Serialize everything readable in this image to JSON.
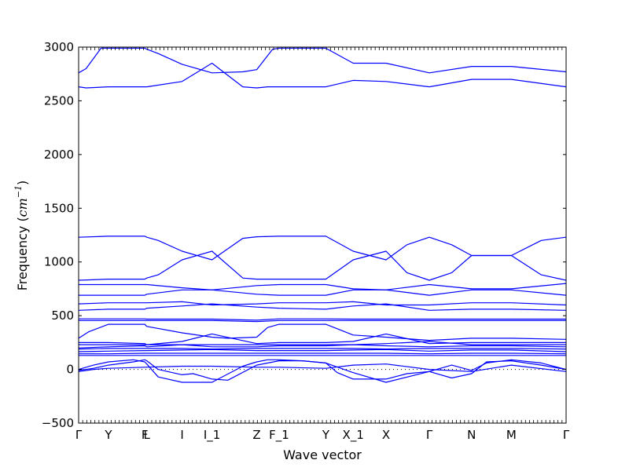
{
  "chart_data": {
    "type": "line",
    "title": "",
    "xlabel": "Wave vector",
    "ylabel_parts": {
      "prefix": "Frequency (",
      "var": "cm",
      "sup": "−1",
      "suffix": ")"
    },
    "ylim": [
      -500,
      3000
    ],
    "yticks": [
      -500,
      0,
      500,
      1000,
      1500,
      2000,
      2500,
      3000
    ],
    "grid": false,
    "legend": "none",
    "line_color": "#0000ff",
    "high_symmetry_points": [
      {
        "label": "Γ",
        "x": 0.0
      },
      {
        "label": "Y",
        "x": 0.6
      },
      {
        "label": "F",
        "x": 1.33
      },
      {
        "label": "L",
        "x": 1.37
      },
      {
        "label": "I",
        "x": 2.08
      },
      {
        "label": "I_1",
        "x": 2.68
      },
      {
        "label": "Z",
        "x": 3.58
      },
      {
        "label": "F_1",
        "x": 4.03
      },
      {
        "label": "Y",
        "x": 4.97
      },
      {
        "label": "X_1",
        "x": 5.52
      },
      {
        "label": "X",
        "x": 6.18
      },
      {
        "label": "Γ",
        "x": 7.05
      },
      {
        "label": "N",
        "x": 7.9
      },
      {
        "label": "M",
        "x": 8.7
      },
      {
        "label": "Γ",
        "x": 9.8
      }
    ],
    "series": [
      {
        "x": [
          0,
          0.15,
          0.45,
          0.6,
          1.33,
          1.37,
          1.6,
          2.08,
          2.68,
          3.3,
          3.58,
          3.9,
          4.03,
          4.97,
          5.52,
          6.18,
          7.05,
          7.9,
          8.7,
          9.8
        ],
        "y": [
          2760,
          2800,
          2990,
          2990,
          2990,
          2980,
          2940,
          2840,
          2760,
          2770,
          2790,
          2980,
          2990,
          2990,
          2850,
          2850,
          2760,
          2820,
          2820,
          2770
        ]
      },
      {
        "x": [
          0,
          0.15,
          0.6,
          1.33,
          1.37,
          2.08,
          2.68,
          3.3,
          3.58,
          3.8,
          4.03,
          4.97,
          5.52,
          6.18,
          7.05,
          7.9,
          8.7,
          9.8
        ],
        "y": [
          2630,
          2620,
          2630,
          2630,
          2630,
          2680,
          2850,
          2630,
          2620,
          2630,
          2630,
          2630,
          2690,
          2680,
          2630,
          2700,
          2700,
          2630
        ]
      },
      {
        "x": [
          0,
          0.6,
          1.33,
          1.37,
          1.6,
          2.08,
          2.68,
          3.3,
          3.58,
          4.03,
          4.97,
          5.52,
          6.18,
          6.6,
          7.05,
          7.5,
          7.9,
          8.7,
          9.3,
          9.8
        ],
        "y": [
          1230,
          1240,
          1240,
          1230,
          1200,
          1100,
          1020,
          1220,
          1235,
          1240,
          1240,
          1100,
          1020,
          1160,
          1230,
          1160,
          1060,
          1060,
          1200,
          1230
        ]
      },
      {
        "x": [
          0,
          0.6,
          1.33,
          1.37,
          1.6,
          2.08,
          2.68,
          3.3,
          3.58,
          4.03,
          4.97,
          5.52,
          6.18,
          6.6,
          7.05,
          7.5,
          7.9,
          8.7,
          9.3,
          9.8
        ],
        "y": [
          830,
          840,
          840,
          850,
          880,
          1020,
          1100,
          850,
          840,
          840,
          840,
          1020,
          1100,
          900,
          830,
          900,
          1060,
          1060,
          880,
          830
        ]
      },
      {
        "x": [
          0,
          0.6,
          1.33,
          1.37,
          2.08,
          2.68,
          3.58,
          4.03,
          4.97,
          5.52,
          6.18,
          7.05,
          7.9,
          8.7,
          9.8
        ],
        "y": [
          790,
          790,
          790,
          790,
          760,
          740,
          780,
          790,
          790,
          750,
          740,
          790,
          750,
          750,
          800
        ]
      },
      {
        "x": [
          0,
          0.6,
          1.33,
          1.37,
          2.08,
          2.68,
          3.58,
          4.03,
          4.97,
          5.52,
          6.18,
          7.05,
          7.9,
          8.7,
          9.8
        ],
        "y": [
          690,
          690,
          690,
          700,
          740,
          740,
          700,
          690,
          690,
          740,
          740,
          690,
          740,
          740,
          690
        ]
      },
      {
        "x": [
          0,
          0.6,
          1.33,
          1.37,
          2.08,
          2.68,
          3.58,
          4.03,
          4.97,
          5.52,
          6.18,
          7.05,
          7.9,
          8.7,
          9.8
        ],
        "y": [
          610,
          620,
          620,
          620,
          630,
          600,
          610,
          620,
          620,
          630,
          600,
          600,
          620,
          620,
          600
        ]
      },
      {
        "x": [
          0,
          0.6,
          1.33,
          1.37,
          2.08,
          2.68,
          3.58,
          4.03,
          4.97,
          5.52,
          6.18,
          7.05,
          7.9,
          8.7,
          9.8
        ],
        "y": [
          550,
          560,
          560,
          570,
          590,
          610,
          580,
          570,
          560,
          590,
          610,
          550,
          560,
          560,
          550
        ]
      },
      {
        "x": [
          0,
          0.6,
          1.33,
          1.37,
          2.08,
          2.68,
          3.58,
          4.03,
          4.97,
          5.52,
          6.18,
          7.05,
          7.9,
          8.7,
          9.8
        ],
        "y": [
          470,
          470,
          470,
          468,
          468,
          468,
          458,
          470,
          470,
          468,
          468,
          468,
          468,
          468,
          468
        ]
      },
      {
        "x": [
          0,
          0.6,
          1.33,
          1.37,
          2.08,
          2.68,
          3.58,
          4.03,
          4.97,
          5.52,
          6.18,
          7.05,
          7.9,
          8.7,
          9.8
        ],
        "y": [
          455,
          455,
          455,
          455,
          455,
          455,
          445,
          455,
          455,
          455,
          455,
          455,
          455,
          455,
          455
        ]
      },
      {
        "x": [
          0,
          0.2,
          0.6,
          1.33,
          1.37,
          2.08,
          2.68,
          3.0,
          3.58,
          3.8,
          4.03,
          4.97,
          5.52,
          6.18,
          7.05,
          7.9,
          8.7,
          9.8
        ],
        "y": [
          290,
          350,
          420,
          420,
          400,
          340,
          300,
          290,
          300,
          390,
          420,
          420,
          320,
          300,
          270,
          290,
          290,
          280
        ]
      },
      {
        "x": [
          0,
          0.6,
          1.33,
          1.37,
          2.08,
          2.68,
          3.58,
          4.03,
          4.97,
          5.52,
          6.18,
          7.05,
          7.9,
          8.7,
          9.8
        ],
        "y": [
          250,
          250,
          240,
          230,
          260,
          330,
          240,
          250,
          250,
          260,
          330,
          240,
          250,
          250,
          250
        ]
      },
      {
        "x": [
          0,
          0.6,
          1.33,
          1.37,
          2.08,
          2.68,
          3.58,
          4.03,
          4.97,
          5.52,
          6.18,
          7.05,
          7.9,
          8.7,
          9.8
        ],
        "y": [
          230,
          230,
          230,
          230,
          230,
          230,
          230,
          230,
          230,
          230,
          240,
          260,
          230,
          230,
          230
        ]
      },
      {
        "x": [
          0,
          0.6,
          1.33,
          1.37,
          2.08,
          2.68,
          3.58,
          4.03,
          4.97,
          5.52,
          6.18,
          7.05,
          7.9,
          8.7,
          9.8
        ],
        "y": [
          200,
          210,
          220,
          210,
          230,
          210,
          210,
          220,
          220,
          230,
          220,
          210,
          220,
          220,
          210
        ]
      },
      {
        "x": [
          0,
          0.6,
          1.33,
          1.37,
          2.08,
          2.68,
          3.58,
          4.03,
          4.97,
          5.52,
          6.18,
          7.05,
          7.9,
          8.7,
          9.8
        ],
        "y": [
          190,
          195,
          195,
          195,
          195,
          190,
          195,
          195,
          195,
          195,
          190,
          195,
          195,
          195,
          190
        ]
      },
      {
        "x": [
          0,
          0.6,
          1.33,
          1.37,
          2.08,
          2.68,
          3.58,
          4.03,
          4.97,
          5.52,
          6.18,
          7.05,
          7.9,
          8.7,
          9.8
        ],
        "y": [
          165,
          170,
          175,
          175,
          180,
          185,
          175,
          175,
          175,
          180,
          185,
          170,
          180,
          180,
          165
        ]
      },
      {
        "x": [
          0,
          0.6,
          1.33,
          1.37,
          2.08,
          2.68,
          3.58,
          4.03,
          4.97,
          5.52,
          6.18,
          7.05,
          7.9,
          8.7,
          9.8
        ],
        "y": [
          145,
          145,
          150,
          150,
          150,
          150,
          150,
          150,
          150,
          150,
          150,
          145,
          150,
          150,
          145
        ]
      },
      {
        "x": [
          0,
          0.6,
          1.33,
          1.37,
          2.08,
          2.68,
          3.58,
          4.03,
          4.97,
          5.52,
          6.18,
          7.05,
          7.9,
          8.7,
          9.8
        ],
        "y": [
          130,
          130,
          130,
          130,
          130,
          130,
          130,
          130,
          130,
          130,
          130,
          130,
          130,
          130,
          130
        ]
      },
      {
        "x": [
          0,
          0.3,
          0.6,
          1.1,
          1.33,
          1.37,
          1.6,
          2.08,
          2.68,
          3.3,
          3.58,
          3.8,
          4.03,
          4.5,
          4.97,
          5.2,
          5.52,
          6.18,
          6.6,
          7.05,
          7.5,
          7.9,
          8.2,
          8.7,
          9.3,
          9.8
        ],
        "y": [
          0,
          40,
          70,
          90,
          70,
          50,
          -70,
          -120,
          -120,
          30,
          70,
          90,
          90,
          80,
          60,
          -30,
          -90,
          -90,
          -40,
          -20,
          -80,
          -40,
          70,
          80,
          40,
          0
        ]
      },
      {
        "x": [
          0,
          0.3,
          0.6,
          1.1,
          1.33,
          1.37,
          1.6,
          2.08,
          2.3,
          2.68,
          3.0,
          3.58,
          4.03,
          4.5,
          4.97,
          5.52,
          6.18,
          7.05,
          7.5,
          7.9,
          8.2,
          8.7,
          9.3,
          9.8
        ],
        "y": [
          -10,
          10,
          40,
          70,
          90,
          80,
          0,
          -50,
          -40,
          -90,
          -100,
          40,
          80,
          80,
          60,
          -30,
          -120,
          -20,
          40,
          -10,
          60,
          90,
          60,
          0
        ]
      },
      {
        "x": [
          0,
          0.3,
          0.6,
          1.33,
          2.08,
          2.68,
          3.58,
          4.03,
          4.97,
          5.52,
          6.18,
          7.05,
          7.9,
          8.7,
          9.8
        ],
        "y": [
          -20,
          0,
          10,
          20,
          30,
          30,
          20,
          20,
          10,
          40,
          50,
          0,
          -20,
          40,
          -20
        ]
      }
    ]
  }
}
